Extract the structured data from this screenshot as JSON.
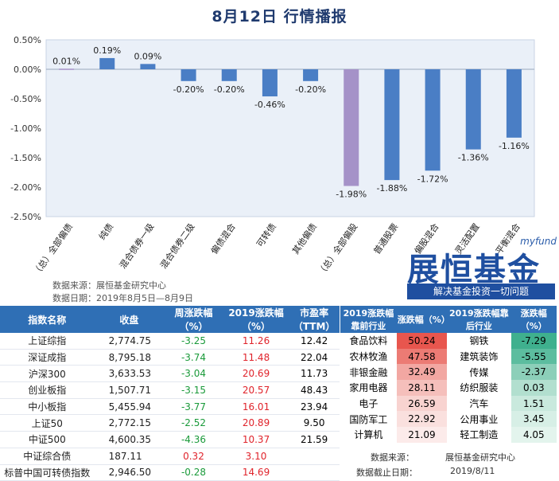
{
  "header": {
    "title": "8月12日  行情播报"
  },
  "chart_data": {
    "type": "bar",
    "categories": [
      "（总）全部偏债",
      "纯债",
      "混合债券一级",
      "混合债券二级",
      "偏债混合",
      "可转债",
      "其他偏债",
      "（总）全部偏股",
      "普通股票",
      "偏股混合",
      "灵活配置",
      "平衡混合"
    ],
    "values": [
      0.01,
      0.19,
      0.09,
      -0.2,
      -0.2,
      -0.46,
      -0.2,
      -1.98,
      -1.88,
      -1.72,
      -1.36,
      -1.16
    ],
    "data_labels": [
      "0.01%",
      "0.19%",
      "0.09%",
      "-0.20%",
      "-0.20%",
      "-0.46%",
      "-0.20%",
      "-1.98%",
      "-1.88%",
      "-1.72%",
      "-1.36%",
      "-1.16%"
    ],
    "yticks": [
      "0.50%",
      "0.00%",
      "-0.50%",
      "-1.00%",
      "-1.50%",
      "-2.00%",
      "-2.50%"
    ],
    "ylim": [
      -2.5,
      0.5
    ],
    "colors": {
      "default": "#4a7ec5",
      "highlight": "#a592c8"
    },
    "highlight_indices": [
      0,
      7
    ],
    "grid": false
  },
  "chart_source": {
    "line1": "数据来源：展恒基金研究中心",
    "line2": "数据日期：2019年8月5日—8月9日"
  },
  "logo": {
    "brand": "myfund",
    "name": "展恒基金",
    "slogan": "解决基金投资一切问题"
  },
  "index_table": {
    "headers": [
      "指数名称",
      "收盘",
      "周涨跌幅（%）",
      "2019涨跌幅（%）",
      "市盈率（TTM）"
    ],
    "rows": [
      {
        "name": "上证综指",
        "close": "2,774.75",
        "wk": "-3.25",
        "ytd": "11.26",
        "pe": "12.42"
      },
      {
        "name": "深证成指",
        "close": "8,795.18",
        "wk": "-3.74",
        "ytd": "11.48",
        "pe": "22.04"
      },
      {
        "name": "沪深300",
        "close": "3,633.53",
        "wk": "-3.04",
        "ytd": "20.69",
        "pe": "11.73"
      },
      {
        "name": "创业板指",
        "close": "1,507.71",
        "wk": "-3.15",
        "ytd": "20.57",
        "pe": "48.43"
      },
      {
        "name": "中小板指",
        "close": "5,455.94",
        "wk": "-3.77",
        "ytd": "16.01",
        "pe": "23.94"
      },
      {
        "name": "上证50",
        "close": "2,772.15",
        "wk": "-2.52",
        "ytd": "20.89",
        "pe": "9.50"
      },
      {
        "name": "中证500",
        "close": "4,600.35",
        "wk": "-4.36",
        "ytd": "10.37",
        "pe": "21.59"
      },
      {
        "name": "中证综合债",
        "close": "187.11",
        "wk": "0.32",
        "ytd": "3.10",
        "pe": ""
      },
      {
        "name": "标普中国可转债指数",
        "close": "2,946.50",
        "wk": "-0.28",
        "ytd": "14.69",
        "pe": ""
      }
    ]
  },
  "industry_table": {
    "headers": [
      "2019涨跌幅靠前行业",
      "涨跌幅（%）",
      "2019涨跌幅靠后行业",
      "涨跌幅（%）"
    ],
    "rows": [
      {
        "top": "食品饮料",
        "top_val": "50.24",
        "bot": "钢铁",
        "bot_val": "-7.29"
      },
      {
        "top": "农林牧渔",
        "top_val": "47.58",
        "bot": "建筑装饰",
        "bot_val": "-5.55"
      },
      {
        "top": "非银金融",
        "top_val": "32.49",
        "bot": "传媒",
        "bot_val": "-2.37"
      },
      {
        "top": "家用电器",
        "top_val": "28.11",
        "bot": "纺织服装",
        "bot_val": "0.03"
      },
      {
        "top": "电子",
        "top_val": "26.59",
        "bot": "汽车",
        "bot_val": "1.51"
      },
      {
        "top": "国防军工",
        "top_val": "22.92",
        "bot": "公用事业",
        "bot_val": "3.45"
      },
      {
        "top": "计算机",
        "top_val": "21.09",
        "bot": "轻工制造",
        "bot_val": "4.05"
      }
    ],
    "top_colors": [
      "#e8564e",
      "#ec7b74",
      "#f2a7a2",
      "#f5bfbb",
      "#f8d3d0",
      "#fae0de",
      "#fcebea"
    ],
    "bot_colors": [
      "#3fb08e",
      "#5cbd9f",
      "#8ccfb9",
      "#b2dfcf",
      "#c9e9dd",
      "#d7efe6",
      "#e3f4ed"
    ]
  },
  "footer": {
    "source_label": "数据来源：",
    "source_value": "展恒基金研究中心",
    "date_label": "数据截止日期：",
    "date_value": "2019/8/11"
  }
}
